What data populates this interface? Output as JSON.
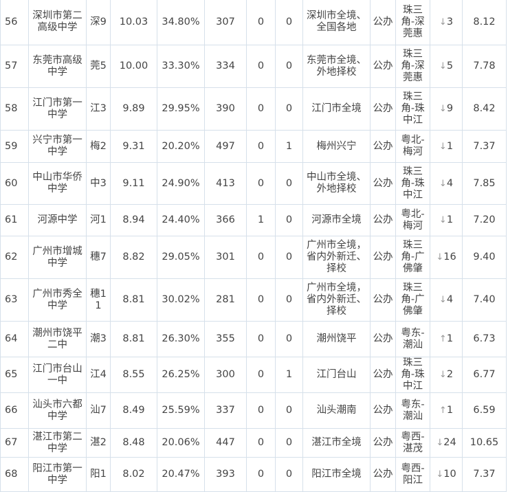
{
  "rows": [
    {
      "rank": "56",
      "name": "深圳市第二高级中学",
      "code": "深9",
      "score": "10.03",
      "pct": "34.80%",
      "num": "307",
      "a": "0",
      "b": "0",
      "scope": "深圳市全境、全国各地",
      "type": "公办",
      "area": "珠三角-深莞惠",
      "dir": "down",
      "change": "3",
      "last": "8.12"
    },
    {
      "rank": "57",
      "name": "东莞市高级中学",
      "code": "莞5",
      "score": "10.00",
      "pct": "33.30%",
      "num": "334",
      "a": "0",
      "b": "0",
      "scope": "东莞市全境、外地择校",
      "type": "公办",
      "area": "珠三角-深莞惠",
      "dir": "down",
      "change": "5",
      "last": "7.78"
    },
    {
      "rank": "58",
      "name": "江门市第一中学",
      "code": "江3",
      "score": "9.89",
      "pct": "29.95%",
      "num": "390",
      "a": "0",
      "b": "0",
      "scope": "江门市全境",
      "type": "公办",
      "area": "珠三角-珠中江",
      "dir": "down",
      "change": "9",
      "last": "8.42"
    },
    {
      "rank": "59",
      "name": "兴宁市第一中学",
      "code": "梅2",
      "score": "9.31",
      "pct": "20.20%",
      "num": "497",
      "a": "0",
      "b": "1",
      "scope": "梅州兴宁",
      "type": "公办",
      "area": "粤北-梅河",
      "dir": "down",
      "change": "1",
      "last": "7.37"
    },
    {
      "rank": "60",
      "name": "中山市华侨中学",
      "code": "中3",
      "score": "9.11",
      "pct": "24.90%",
      "num": "413",
      "a": "0",
      "b": "0",
      "scope": "中山市全境、外地择校",
      "type": "公办",
      "area": "珠三角-珠中江",
      "dir": "down",
      "change": "4",
      "last": "7.85"
    },
    {
      "rank": "61",
      "name": "河源中学",
      "code": "河1",
      "score": "8.94",
      "pct": "24.40%",
      "num": "366",
      "a": "1",
      "b": "0",
      "scope": "河源市全境",
      "type": "公办",
      "area": "粤北-梅河",
      "dir": "down",
      "change": "1",
      "last": "7.20"
    },
    {
      "rank": "62",
      "name": "广州市增城中学",
      "code": "穗7",
      "score": "8.82",
      "pct": "29.05%",
      "num": "301",
      "a": "0",
      "b": "0",
      "scope": "广州市全境，省内外新迁、择校",
      "type": "公办",
      "area": "珠三角-广佛肇",
      "dir": "down",
      "change": "16",
      "last": "9.40"
    },
    {
      "rank": "63",
      "name": "广州市秀全中学",
      "code": "穗11",
      "score": "8.81",
      "pct": "30.02%",
      "num": "281",
      "a": "0",
      "b": "0",
      "scope": "广州市全境，省内外新迁、择校",
      "type": "公办",
      "area": "珠三角-广佛肇",
      "dir": "down",
      "change": "4",
      "last": "7.40"
    },
    {
      "rank": "64",
      "name": "潮州市饶平二中",
      "code": "潮3",
      "score": "8.81",
      "pct": "26.30%",
      "num": "355",
      "a": "0",
      "b": "0",
      "scope": "潮州饶平",
      "type": "公办",
      "area": "粤东-潮汕",
      "dir": "up",
      "change": "1",
      "last": "6.73"
    },
    {
      "rank": "65",
      "name": "江门市台山一中",
      "code": "江4",
      "score": "8.55",
      "pct": "26.25%",
      "num": "300",
      "a": "0",
      "b": "1",
      "scope": "江门台山",
      "type": "公办",
      "area": "珠三角-珠中江",
      "dir": "down",
      "change": "2",
      "last": "6.77"
    },
    {
      "rank": "66",
      "name": "汕头市六都中学",
      "code": "汕7",
      "score": "8.49",
      "pct": "25.59%",
      "num": "337",
      "a": "0",
      "b": "0",
      "scope": "汕头潮南",
      "type": "公办",
      "area": "粤东-潮汕",
      "dir": "up",
      "change": "1",
      "last": "6.59"
    },
    {
      "rank": "67",
      "name": "湛江市第二中学",
      "code": "湛2",
      "score": "8.48",
      "pct": "20.06%",
      "num": "447",
      "a": "0",
      "b": "0",
      "scope": "湛江市全境",
      "type": "公办",
      "area": "粤西-湛茂",
      "dir": "down",
      "change": "24",
      "last": "10.65"
    },
    {
      "rank": "68",
      "name": "阳江市第一中学",
      "code": "阳1",
      "score": "8.02",
      "pct": "20.47%",
      "num": "393",
      "a": "0",
      "b": "0",
      "scope": "阳江市全境",
      "type": "公办",
      "area": "粤西-阳江",
      "dir": "down",
      "change": "10",
      "last": "7.37"
    }
  ],
  "arrows": {
    "up": "↑",
    "down": "↓"
  }
}
